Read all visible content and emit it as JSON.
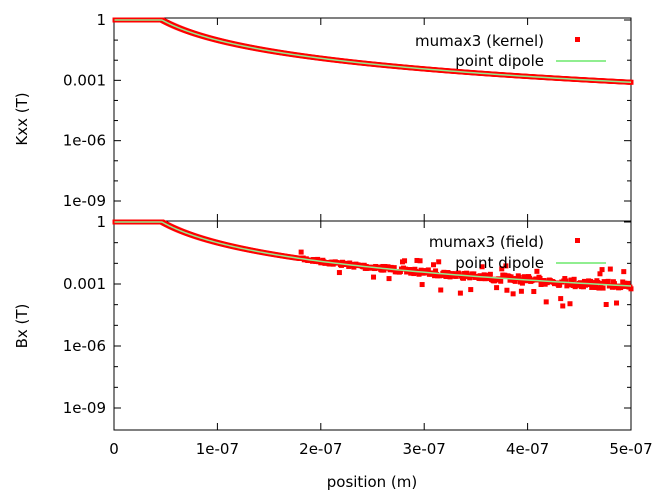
{
  "chart_data": [
    {
      "type": "scatter",
      "ylabel": "Kxx (T)",
      "yscale": "log",
      "ylim": [
        1e-10,
        1
      ],
      "y_ticks": [
        "1",
        "0.001",
        "1e-06",
        "1e-09"
      ],
      "legend": [
        {
          "label": "mumax3 (kernel)",
          "kind": "points",
          "color": "#ff0000"
        },
        {
          "label": "point dipole",
          "kind": "line",
          "color": "#90ee90"
        }
      ],
      "legend_position": "top-right",
      "series": [
        {
          "name": "mumax3 (kernel)",
          "color": "#ff0000",
          "model": "dipole",
          "amplitude": 1e-22,
          "x_range": [
            1e-09,
            5e-07
          ],
          "noise": "none"
        },
        {
          "name": "point dipole",
          "color": "#90ee90",
          "model": "dipole",
          "amplitude": 1e-22,
          "x_range": [
            5e-10,
            5e-07
          ]
        }
      ]
    },
    {
      "type": "scatter",
      "ylabel": "Bx (T)",
      "yscale": "log",
      "ylim": [
        1e-10,
        1
      ],
      "y_ticks": [
        "1",
        "0.001",
        "1e-06",
        "1e-09"
      ],
      "legend": [
        {
          "label": "mumax3 (field)",
          "kind": "points",
          "color": "#ff0000"
        },
        {
          "label": "point dipole",
          "kind": "line",
          "color": "#90ee90"
        }
      ],
      "legend_position": "top-right",
      "series": [
        {
          "name": "mumax3 (field)",
          "color": "#ff0000",
          "model": "dipole",
          "amplitude": 1e-22,
          "x_range": [
            1e-09,
            5e-07
          ],
          "noise": "increasing beyond 1.8e-07"
        },
        {
          "name": "point dipole",
          "color": "#90ee90",
          "model": "dipole",
          "amplitude": 1e-22,
          "x_range": [
            5e-10,
            5e-07
          ]
        }
      ]
    }
  ],
  "xaxis": {
    "label": "position (m)",
    "xlim": [
      0,
      5e-07
    ],
    "ticks": [
      {
        "value": 0,
        "label": "0"
      },
      {
        "value": 1e-07,
        "label": "1e-07"
      },
      {
        "value": 2e-07,
        "label": "2e-07"
      },
      {
        "value": 3e-07,
        "label": "3e-07"
      },
      {
        "value": 4e-07,
        "label": "4e-07"
      },
      {
        "value": 5e-07,
        "label": "5e-07"
      }
    ]
  }
}
